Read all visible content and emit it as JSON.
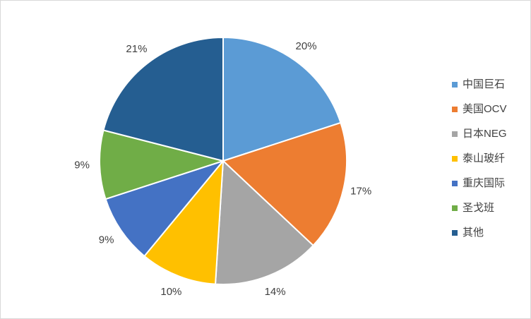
{
  "chart_data": {
    "type": "pie",
    "categories": [
      "中国巨石",
      "美国OCV",
      "日本NEG",
      "泰山玻纤",
      "重庆国际",
      "圣戈班",
      "其他"
    ],
    "values": [
      20,
      17,
      14,
      10,
      9,
      9,
      21
    ],
    "value_labels": [
      "20%",
      "17%",
      "14%",
      "10%",
      "9%",
      "9%",
      "21%"
    ],
    "colors": [
      "#5b9bd5",
      "#ed7d31",
      "#a5a5a5",
      "#ffc000",
      "#4472c4",
      "#70ad47",
      "#255e91"
    ],
    "legend": "right"
  }
}
